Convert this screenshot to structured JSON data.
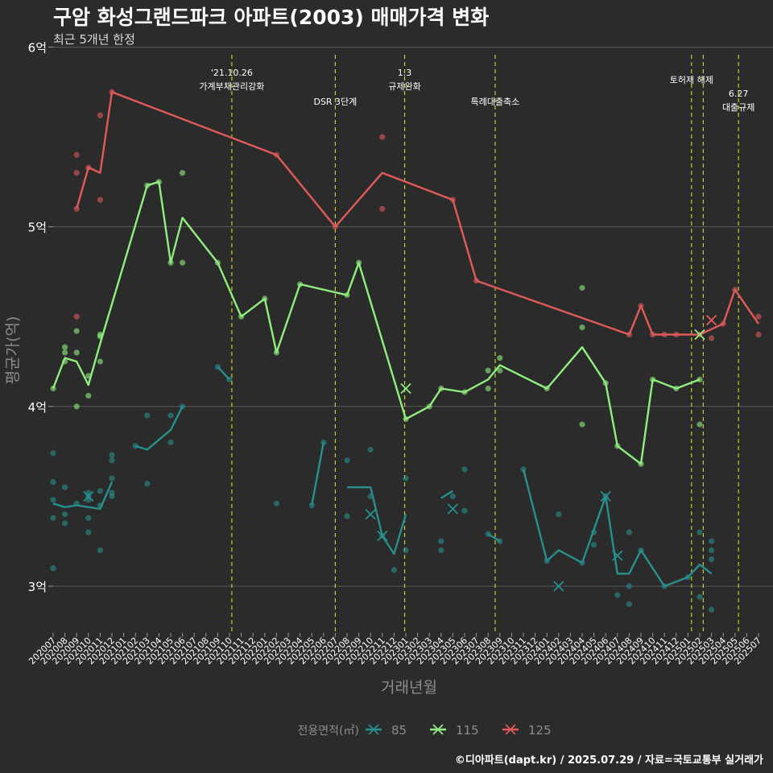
{
  "title": "구암 화성그랜드파크 아파트(2003) 매매가격 변화",
  "subtitle": "최근 5개년 한정",
  "footer": "©디아파트(dapt.kr) / 2025.07.29 / 자료=국토교통부 실거래가",
  "chart_data": {
    "type": "line",
    "xlabel": "거래년월",
    "ylabel": "평균가(억)",
    "ylim": [
      2.74,
      6.02
    ],
    "y_ticks": [
      {
        "value": 3,
        "label": "3억"
      },
      {
        "value": 4,
        "label": "4억"
      },
      {
        "value": 5,
        "label": "5억"
      },
      {
        "value": 6,
        "label": "6억"
      }
    ],
    "grid": true,
    "legend_title": "전용면적(㎡)",
    "legend_position": "bottom",
    "colors": {
      "background": "#2b2b2b",
      "grid": "#5a5a5a",
      "event_line": "#cccc33",
      "text": "#ffffff",
      "muted": "#8c8c8c"
    },
    "categories": [
      "202007",
      "202008",
      "202009",
      "202010",
      "202011",
      "202012",
      "202101",
      "202102",
      "202103",
      "202104",
      "202105",
      "202106",
      "202107",
      "202108",
      "202109",
      "202110",
      "202111",
      "202112",
      "202201",
      "202202",
      "202203",
      "202204",
      "202205",
      "202206",
      "202207",
      "202208",
      "202209",
      "202210",
      "202211",
      "202212",
      "202301",
      "202302",
      "202303",
      "202304",
      "202305",
      "202306",
      "202307",
      "202308",
      "202309",
      "202310",
      "202311",
      "202312",
      "202401",
      "202402",
      "202403",
      "202404",
      "202405",
      "202406",
      "202407",
      "202408",
      "202409",
      "202410",
      "202411",
      "202412",
      "202501",
      "202502",
      "202503",
      "202504",
      "202505",
      "202506",
      "202507"
    ],
    "events": [
      {
        "x": 15.2,
        "lines": [
          "'21.10.26",
          "가계부채관리강화"
        ],
        "level": 1
      },
      {
        "x": 24.0,
        "lines": [
          "DSR 3단계"
        ],
        "level": 3
      },
      {
        "x": 29.9,
        "lines": [
          "1.3",
          "규제완화"
        ],
        "level": 1
      },
      {
        "x": 37.6,
        "lines": [
          "특례대출축소"
        ],
        "level": 3
      },
      {
        "x": 54.3,
        "lines": [
          "토허제 해제"
        ],
        "level": 2
      },
      {
        "x": 55.3,
        "lines": [],
        "level": 0
      },
      {
        "x": 58.3,
        "lines": [
          "6.27",
          "대출규제"
        ],
        "level": 4
      }
    ],
    "series": [
      {
        "name": "85",
        "color": "#27908e",
        "segments": [
          [
            [
              0,
              3.46
            ],
            [
              1,
              3.44
            ],
            [
              2,
              3.45
            ],
            [
              3,
              3.44
            ],
            [
              4,
              3.43
            ],
            [
              5,
              3.58
            ]
          ],
          [
            [
              7,
              3.78
            ],
            [
              8,
              3.76
            ],
            [
              10,
              3.87
            ],
            [
              11,
              4.0
            ]
          ],
          [
            [
              14,
              4.22
            ],
            [
              15,
              4.15
            ]
          ],
          [
            [
              22,
              3.45
            ],
            [
              23,
              3.8
            ]
          ],
          [
            [
              25,
              3.55
            ],
            [
              27,
              3.55
            ],
            [
              28,
              3.28
            ],
            [
              29,
              3.18
            ],
            [
              30,
              3.4
            ]
          ],
          [
            [
              33,
              3.49
            ],
            [
              34,
              3.53
            ]
          ],
          [
            [
              37,
              3.29
            ],
            [
              38,
              3.25
            ]
          ],
          [
            [
              40,
              3.65
            ],
            [
              42,
              3.14
            ],
            [
              43,
              3.2
            ],
            [
              45,
              3.13
            ],
            [
              47,
              3.5
            ],
            [
              48,
              3.07
            ],
            [
              49,
              3.07
            ],
            [
              50,
              3.2
            ],
            [
              52,
              3.0
            ],
            [
              54,
              3.05
            ],
            [
              55,
              3.12
            ],
            [
              56,
              3.07
            ]
          ]
        ],
        "points": [
          [
            0,
            3.74
          ],
          [
            0,
            3.58
          ],
          [
            0,
            3.48
          ],
          [
            0,
            3.38
          ],
          [
            0,
            3.1
          ],
          [
            1,
            3.55
          ],
          [
            1,
            3.4
          ],
          [
            1,
            3.35
          ],
          [
            2,
            3.46
          ],
          [
            3,
            3.52
          ],
          [
            3,
            3.48
          ],
          [
            3,
            3.38
          ],
          [
            3,
            3.3
          ],
          [
            3,
            3.5
          ],
          [
            4,
            3.53
          ],
          [
            4,
            3.45
          ],
          [
            4,
            3.2
          ],
          [
            5,
            3.73
          ],
          [
            5,
            3.7
          ],
          [
            5,
            3.6
          ],
          [
            5,
            3.52
          ],
          [
            5,
            3.5
          ],
          [
            7,
            3.78
          ],
          [
            8,
            3.95
          ],
          [
            8,
            3.57
          ],
          [
            10,
            3.95
          ],
          [
            10,
            3.8
          ],
          [
            11,
            4.0
          ],
          [
            14,
            4.22
          ],
          [
            15,
            4.15
          ],
          [
            19,
            3.46
          ],
          [
            22,
            3.45
          ],
          [
            23,
            3.8
          ],
          [
            25,
            3.7
          ],
          [
            25,
            3.39
          ],
          [
            27,
            3.76
          ],
          [
            27,
            3.5
          ],
          [
            28,
            3.28
          ],
          [
            29,
            3.09
          ],
          [
            30,
            3.6
          ],
          [
            30,
            3.2
          ],
          [
            33,
            3.25
          ],
          [
            33,
            3.2
          ],
          [
            34,
            3.5
          ],
          [
            35,
            3.65
          ],
          [
            35,
            3.42
          ],
          [
            37,
            3.29
          ],
          [
            38,
            3.25
          ],
          [
            40,
            3.65
          ],
          [
            42,
            3.14
          ],
          [
            43,
            3.4
          ],
          [
            45,
            3.13
          ],
          [
            46,
            3.3
          ],
          [
            46,
            3.23
          ],
          [
            47,
            3.5
          ],
          [
            48,
            2.95
          ],
          [
            49,
            3.3
          ],
          [
            49,
            3.0
          ],
          [
            49,
            2.9
          ],
          [
            50,
            3.2
          ],
          [
            52,
            3.0
          ],
          [
            54,
            3.05
          ],
          [
            55,
            3.3
          ],
          [
            55,
            2.94
          ],
          [
            56,
            3.25
          ],
          [
            56,
            3.2
          ],
          [
            56,
            3.15
          ],
          [
            56,
            2.87
          ]
        ],
        "markers": [
          [
            3,
            3.5
          ],
          [
            27,
            3.4
          ],
          [
            28,
            3.28
          ],
          [
            34,
            3.43
          ],
          [
            43,
            3.0
          ],
          [
            47,
            3.5
          ],
          [
            48,
            3.17
          ]
        ]
      },
      {
        "name": "115",
        "color": "#90ee7e",
        "segments": [
          [
            [
              0,
              4.1
            ],
            [
              1,
              4.27
            ],
            [
              2,
              4.25
            ],
            [
              3,
              4.12
            ],
            [
              4,
              4.35
            ],
            [
              8,
              5.23
            ],
            [
              9,
              5.25
            ],
            [
              10,
              4.8
            ],
            [
              11,
              5.05
            ],
            [
              14,
              4.8
            ],
            [
              16,
              4.5
            ],
            [
              18,
              4.6
            ],
            [
              19,
              4.3
            ],
            [
              21,
              4.68
            ],
            [
              25,
              4.62
            ],
            [
              26,
              4.8
            ],
            [
              30,
              3.93
            ],
            [
              32,
              4.0
            ],
            [
              33,
              4.1
            ],
            [
              35,
              4.08
            ],
            [
              37,
              4.15
            ],
            [
              38,
              4.23
            ],
            [
              42,
              4.1
            ],
            [
              45,
              4.33
            ],
            [
              47,
              4.13
            ],
            [
              48,
              3.78
            ],
            [
              50,
              3.68
            ],
            [
              51,
              4.15
            ],
            [
              53,
              4.1
            ],
            [
              55,
              4.15
            ]
          ]
        ],
        "points": [
          [
            0,
            4.1
          ],
          [
            1,
            4.33
          ],
          [
            1,
            4.3
          ],
          [
            1,
            4.25
          ],
          [
            2,
            4.42
          ],
          [
            2,
            4.3
          ],
          [
            2,
            4.0
          ],
          [
            3,
            4.17
          ],
          [
            3,
            4.06
          ],
          [
            4,
            4.4
          ],
          [
            4,
            4.39
          ],
          [
            4,
            4.25
          ],
          [
            8,
            5.23
          ],
          [
            9,
            5.25
          ],
          [
            10,
            4.8
          ],
          [
            11,
            5.3
          ],
          [
            11,
            4.8
          ],
          [
            14,
            4.8
          ],
          [
            16,
            4.5
          ],
          [
            18,
            4.6
          ],
          [
            19,
            4.3
          ],
          [
            21,
            4.68
          ],
          [
            25,
            4.62
          ],
          [
            26,
            4.8
          ],
          [
            30,
            3.93
          ],
          [
            32,
            4.0
          ],
          [
            33,
            4.1
          ],
          [
            35,
            4.08
          ],
          [
            37,
            4.2
          ],
          [
            37,
            4.1
          ],
          [
            38,
            4.27
          ],
          [
            38,
            4.2
          ],
          [
            42,
            4.1
          ],
          [
            45,
            4.66
          ],
          [
            45,
            4.44
          ],
          [
            45,
            3.9
          ],
          [
            47,
            4.13
          ],
          [
            48,
            3.78
          ],
          [
            50,
            3.68
          ],
          [
            51,
            4.15
          ],
          [
            53,
            4.1
          ],
          [
            55,
            4.15
          ],
          [
            55,
            3.9
          ]
        ],
        "markers": [
          [
            30,
            4.1
          ],
          [
            55,
            4.4
          ]
        ]
      },
      {
        "name": "125",
        "color": "#e05a5a",
        "segments": [
          [
            [
              2,
              5.1
            ],
            [
              3,
              5.33
            ],
            [
              4,
              5.3
            ],
            [
              5,
              5.75
            ],
            [
              19,
              5.4
            ],
            [
              24,
              5.0
            ],
            [
              28,
              5.3
            ],
            [
              34,
              5.15
            ],
            [
              36,
              4.7
            ],
            [
              49,
              4.4
            ],
            [
              50,
              4.56
            ],
            [
              51,
              4.4
            ],
            [
              52,
              4.4
            ],
            [
              53,
              4.4
            ],
            [
              55,
              4.4
            ],
            [
              57,
              4.46
            ],
            [
              58,
              4.65
            ],
            [
              60,
              4.46
            ]
          ]
        ],
        "points": [
          [
            2,
            5.4
          ],
          [
            2,
            5.3
          ],
          [
            2,
            5.1
          ],
          [
            2,
            4.5
          ],
          [
            3,
            5.33
          ],
          [
            4,
            5.62
          ],
          [
            4,
            5.15
          ],
          [
            5,
            5.75
          ],
          [
            19,
            5.4
          ],
          [
            24,
            5.0
          ],
          [
            28,
            5.5
          ],
          [
            28,
            5.1
          ],
          [
            34,
            5.15
          ],
          [
            36,
            4.7
          ],
          [
            49,
            4.4
          ],
          [
            50,
            4.56
          ],
          [
            51,
            4.4
          ],
          [
            52,
            4.4
          ],
          [
            53,
            4.4
          ],
          [
            55,
            4.4
          ],
          [
            56,
            4.38
          ],
          [
            57,
            4.46
          ],
          [
            58,
            4.65
          ],
          [
            60,
            4.5
          ],
          [
            60,
            4.4
          ]
        ],
        "markers": [
          [
            56,
            4.48
          ]
        ]
      }
    ]
  }
}
